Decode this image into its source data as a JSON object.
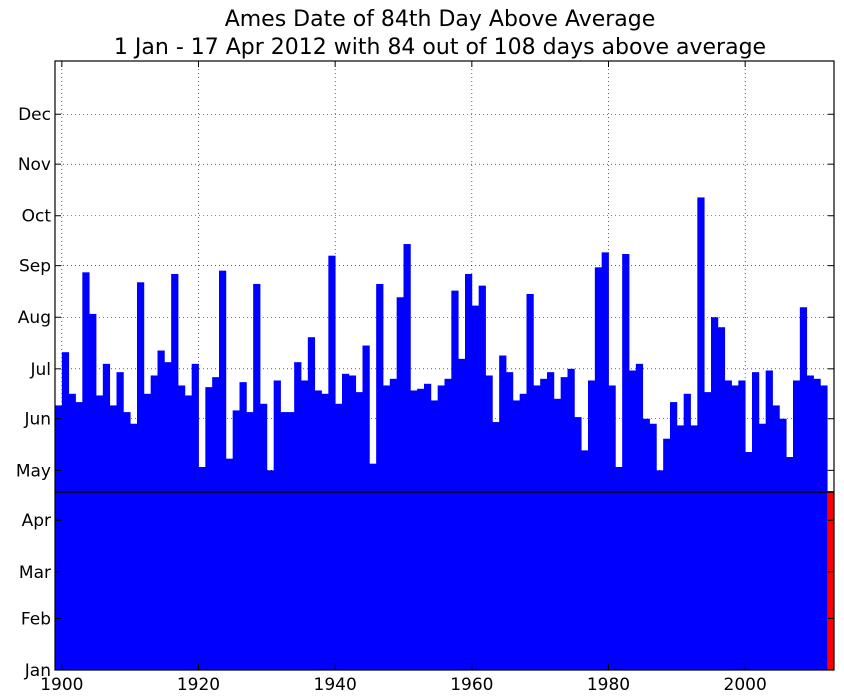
{
  "chart_data": {
    "type": "bar",
    "title": "Ames Date of 84th Day Above Average",
    "subtitle": "1 Jan - 17 Apr 2012 with 84 out of 108 days above average",
    "x_tick_labels": [
      "1900",
      "1920",
      "1940",
      "1960",
      "1980",
      "2000"
    ],
    "y_tick_labels": [
      "Jan",
      "Feb",
      "Mar",
      "Apr",
      "May",
      "Jun",
      "Jul",
      "Aug",
      "Sep",
      "Oct",
      "Nov",
      "Dec"
    ],
    "xlim": [
      1899,
      2013
    ],
    "ylim": [
      1,
      367
    ],
    "x_tick_values": [
      1900,
      1920,
      1940,
      1960,
      1980,
      2000
    ],
    "y_tick_values": [
      1,
      32,
      60,
      91,
      121,
      152,
      182,
      213,
      244,
      274,
      305,
      335
    ],
    "reference_line_day": 108,
    "grid": true,
    "bar_color": "#0000ff",
    "highlight_color": "#ff0000",
    "reference_line_color": "#000000",
    "highlight_year": 2012,
    "years": [
      1899,
      1900,
      1901,
      1902,
      1903,
      1904,
      1905,
      1906,
      1907,
      1908,
      1909,
      1910,
      1911,
      1912,
      1913,
      1914,
      1915,
      1916,
      1917,
      1918,
      1919,
      1920,
      1921,
      1922,
      1923,
      1924,
      1925,
      1926,
      1927,
      1928,
      1929,
      1930,
      1931,
      1932,
      1933,
      1934,
      1935,
      1936,
      1937,
      1938,
      1939,
      1940,
      1941,
      1942,
      1943,
      1944,
      1945,
      1946,
      1947,
      1948,
      1949,
      1950,
      1951,
      1952,
      1953,
      1954,
      1955,
      1956,
      1957,
      1958,
      1959,
      1960,
      1961,
      1962,
      1963,
      1964,
      1965,
      1966,
      1967,
      1968,
      1969,
      1970,
      1971,
      1972,
      1973,
      1974,
      1975,
      1976,
      1977,
      1978,
      1979,
      1980,
      1981,
      1982,
      1983,
      1984,
      1985,
      1986,
      1987,
      1988,
      1989,
      1990,
      1991,
      1992,
      1993,
      1994,
      1995,
      1996,
      1997,
      1998,
      1999,
      2000,
      2001,
      2002,
      2003,
      2004,
      2005,
      2006,
      2007,
      2008,
      2009,
      2010,
      2011,
      2012
    ],
    "values": [
      160,
      192,
      167,
      162,
      240,
      215,
      166,
      185,
      160,
      180,
      156,
      149,
      234,
      167,
      178,
      193,
      186,
      239,
      172,
      166,
      185,
      123,
      171,
      177,
      241,
      128,
      157,
      174,
      156,
      233,
      161,
      121,
      175,
      156,
      156,
      186,
      175,
      201,
      169,
      167,
      250,
      161,
      179,
      178,
      168,
      196,
      125,
      233,
      172,
      176,
      225,
      257,
      169,
      170,
      173,
      163,
      172,
      176,
      229,
      188,
      239,
      220,
      232,
      178,
      150,
      190,
      180,
      163,
      167,
      227,
      172,
      176,
      180,
      164,
      177,
      182,
      153,
      133,
      175,
      243,
      252,
      172,
      123,
      251,
      181,
      185,
      152,
      149,
      121,
      140,
      162,
      148,
      167,
      148,
      285,
      168,
      213,
      207,
      175,
      172,
      175,
      132,
      180,
      149,
      181,
      160,
      152,
      129,
      175,
      219,
      178,
      176,
      172,
      108
    ]
  }
}
